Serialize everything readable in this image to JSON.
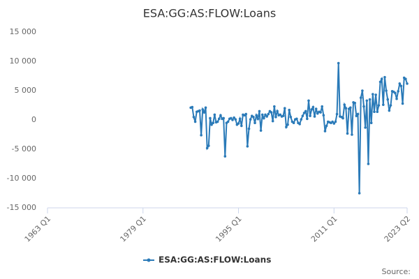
{
  "chart_data": {
    "type": "line",
    "title": "ESA:GG:AS:FLOW:Loans",
    "source": "Source:",
    "x": [
      "1987 Q1",
      "1987 Q2",
      "1987 Q3",
      "1987 Q4",
      "1988 Q1",
      "1988 Q2",
      "1988 Q3",
      "1988 Q4",
      "1989 Q1",
      "1989 Q2",
      "1989 Q3",
      "1989 Q4",
      "1990 Q1",
      "1990 Q2",
      "1990 Q3",
      "1990 Q4",
      "1991 Q1",
      "1991 Q2",
      "1991 Q3",
      "1991 Q4",
      "1992 Q1",
      "1992 Q2",
      "1992 Q3",
      "1992 Q4",
      "1993 Q1",
      "1993 Q2",
      "1993 Q3",
      "1993 Q4",
      "1994 Q1",
      "1994 Q2",
      "1994 Q3",
      "1994 Q4",
      "1995 Q1",
      "1995 Q2",
      "1995 Q3",
      "1995 Q4",
      "1996 Q1",
      "1996 Q2",
      "1996 Q3",
      "1996 Q4",
      "1997 Q1",
      "1997 Q2",
      "1997 Q3",
      "1997 Q4",
      "1998 Q1",
      "1998 Q2",
      "1998 Q3",
      "1998 Q4",
      "1999 Q1",
      "1999 Q2",
      "1999 Q3",
      "1999 Q4",
      "2000 Q1",
      "2000 Q2",
      "2000 Q3",
      "2000 Q4",
      "2001 Q1",
      "2001 Q2",
      "2001 Q3",
      "2001 Q4",
      "2002 Q1",
      "2002 Q2",
      "2002 Q3",
      "2002 Q4",
      "2003 Q1",
      "2003 Q2",
      "2003 Q3",
      "2003 Q4",
      "2004 Q1",
      "2004 Q2",
      "2004 Q3",
      "2004 Q4",
      "2005 Q1",
      "2005 Q2",
      "2005 Q3",
      "2005 Q4",
      "2006 Q1",
      "2006 Q2",
      "2006 Q3",
      "2006 Q4",
      "2007 Q1",
      "2007 Q2",
      "2007 Q3",
      "2007 Q4",
      "2008 Q1",
      "2008 Q2",
      "2008 Q3",
      "2008 Q4",
      "2009 Q1",
      "2009 Q2",
      "2009 Q3",
      "2009 Q4",
      "2010 Q1",
      "2010 Q2",
      "2010 Q3",
      "2010 Q4",
      "2011 Q1",
      "2011 Q2",
      "2011 Q3",
      "2011 Q4",
      "2012 Q1",
      "2012 Q2",
      "2012 Q3",
      "2012 Q4",
      "2013 Q1",
      "2013 Q2",
      "2013 Q3",
      "2013 Q4",
      "2014 Q1",
      "2014 Q2",
      "2014 Q3",
      "2014 Q4",
      "2015 Q1",
      "2015 Q2",
      "2015 Q3",
      "2015 Q4",
      "2016 Q1",
      "2016 Q2",
      "2016 Q3",
      "2016 Q4",
      "2017 Q1",
      "2017 Q2",
      "2017 Q3",
      "2017 Q4",
      "2018 Q1",
      "2018 Q2",
      "2018 Q3",
      "2018 Q4",
      "2019 Q1",
      "2019 Q2",
      "2019 Q3",
      "2019 Q4",
      "2020 Q1",
      "2020 Q2",
      "2020 Q3",
      "2020 Q4",
      "2021 Q1",
      "2021 Q2",
      "2021 Q3",
      "2021 Q4",
      "2022 Q1",
      "2022 Q2",
      "2022 Q3",
      "2022 Q4",
      "2023 Q1",
      "2023 Q2"
    ],
    "series": [
      {
        "name": "ESA:GG:AS:FLOW:Loans",
        "color": "#2a7ab8",
        "values": [
          2100,
          2200,
          500,
          -300,
          1400,
          1500,
          1600,
          -2600,
          1800,
          1300,
          2100,
          -4800,
          -4400,
          300,
          -800,
          -500,
          900,
          -400,
          -300,
          200,
          800,
          200,
          300,
          -6200,
          -500,
          -300,
          200,
          300,
          0,
          400,
          100,
          -800,
          -600,
          200,
          -1000,
          900,
          800,
          1000,
          -4500,
          -1500,
          100,
          700,
          500,
          -500,
          800,
          200,
          1500,
          -1800,
          900,
          300,
          900,
          600,
          1000,
          1500,
          1300,
          -200,
          2300,
          500,
          1500,
          800,
          900,
          600,
          700,
          2000,
          -1200,
          -800,
          1700,
          500,
          -300,
          -500,
          100,
          200,
          -500,
          -700,
          100,
          700,
          1200,
          1500,
          200,
          3300,
          700,
          1800,
          2200,
          600,
          1900,
          1100,
          1400,
          1300,
          2300,
          800,
          -1900,
          -1000,
          -300,
          -400,
          -500,
          -300,
          -600,
          -300,
          1000,
          9700,
          600,
          500,
          300,
          2600,
          2000,
          -2300,
          1900,
          2100,
          -2500,
          3000,
          2900,
          700,
          1000,
          -12500,
          3800,
          5000,
          2300,
          -1300,
          3300,
          -7500,
          3500,
          -500,
          4400,
          1400,
          4300,
          1400,
          2500,
          6500,
          7000,
          2600,
          7300,
          5000,
          3500,
          1600,
          2500,
          4900,
          4800,
          4600,
          3600,
          4900,
          6200,
          5800,
          2800,
          7200,
          7000,
          6200
        ]
      }
    ],
    "xlim": [
      "1963 Q1",
      "2023 Q2"
    ],
    "xticks": [
      "1963 Q1",
      "1979 Q1",
      "1995 Q1",
      "2011 Q1",
      "2023 Q2"
    ],
    "ylim": [
      -15000,
      15000
    ],
    "yticks": [
      {
        "value": -15000,
        "label": "-15 000"
      },
      {
        "value": -10000,
        "label": "-10 000"
      },
      {
        "value": -5000,
        "label": "-5 000"
      },
      0,
      {
        "value": 5000,
        "label": "5 000"
      },
      {
        "value": 10000,
        "label": "10 000"
      },
      {
        "value": 15000,
        "label": "15 000"
      }
    ],
    "legend": "bottom"
  }
}
